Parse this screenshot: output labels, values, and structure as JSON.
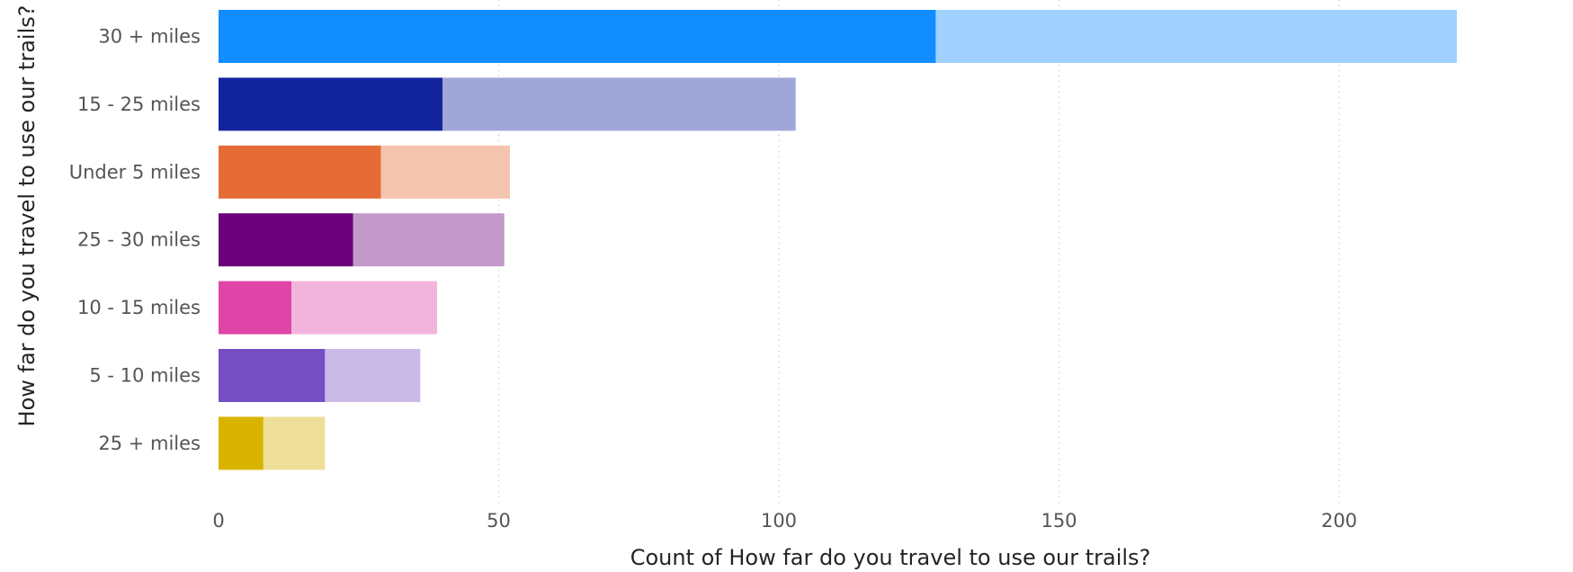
{
  "chart_data": {
    "type": "bar",
    "orientation": "horizontal",
    "xlabel": "Count of How far do you travel to use our trails?",
    "ylabel": "How far do you travel to use our trails?",
    "xlim": [
      0,
      225
    ],
    "xticks": [
      0,
      50,
      100,
      150,
      200
    ],
    "grid": "vertical dotted",
    "categories": [
      "30 + miles",
      "15 - 25 miles",
      "Under 5 miles",
      "25 - 30 miles",
      "10 - 15 miles",
      "5 - 10 miles",
      "25 + miles"
    ],
    "series": [
      {
        "values": [
          128,
          40,
          29,
          24,
          13,
          19,
          8
        ]
      },
      {
        "values": [
          93,
          63,
          23,
          27,
          26,
          17,
          11
        ]
      }
    ],
    "totals": [
      221,
      103,
      52,
      51,
      39,
      36,
      19
    ],
    "colors": {
      "dark": [
        "#118DFF",
        "#12239E",
        "#E66C37",
        "#6B007B",
        "#E044A7",
        "#744EC2",
        "#D9B300"
      ],
      "light": [
        "#A0D1FF",
        "#A0A7D8",
        "#F5C4AF",
        "#C399C9",
        "#F3B4DC",
        "#C8B9E6",
        "#EEDF98"
      ]
    }
  }
}
